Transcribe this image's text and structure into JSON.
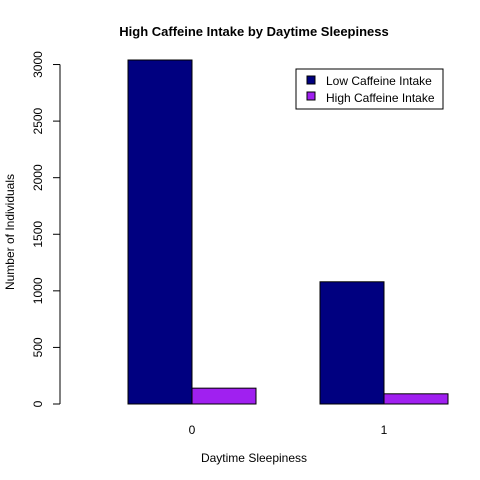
{
  "chart_data": {
    "type": "bar",
    "title": "High Caffeine Intake by Daytime Sleepiness",
    "xlabel": "Daytime Sleepiness",
    "ylabel": "Number of Individuals",
    "categories": [
      "0",
      "1"
    ],
    "series": [
      {
        "name": "Low Caffeine Intake",
        "color": "#000080",
        "values": [
          3040,
          1080
        ]
      },
      {
        "name": "High Caffeine Intake",
        "color": "#a020f0",
        "values": [
          140,
          90
        ]
      }
    ],
    "ylim": [
      0,
      3040
    ],
    "yticks": [
      0,
      500,
      1000,
      1500,
      2000,
      2500,
      3000
    ],
    "grid": false,
    "legend_position": "top-right",
    "bar_layout": "grouped"
  }
}
